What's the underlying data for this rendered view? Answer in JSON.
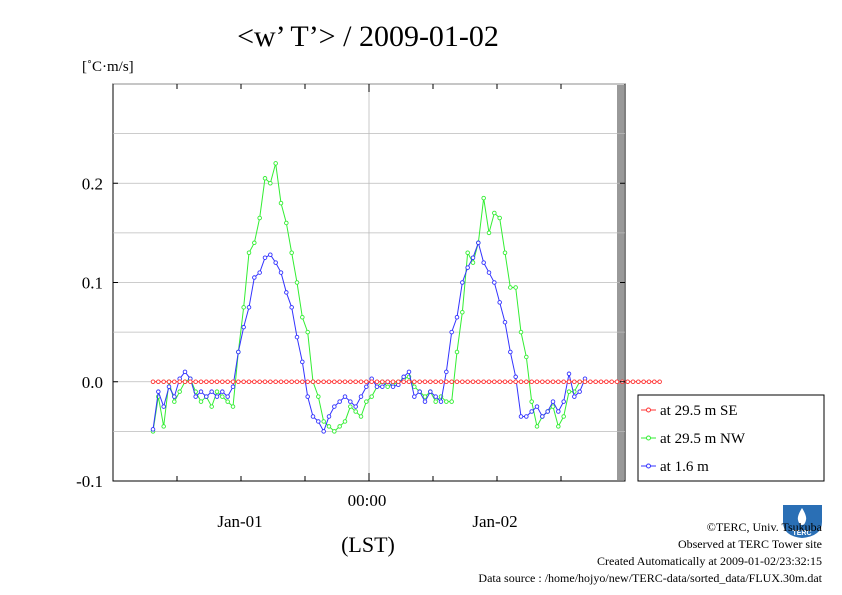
{
  "colors": {
    "se": "#ff3333",
    "nw": "#33ee33",
    "low": "#3333ff",
    "grid": "#bbbbbb",
    "axis": "#000000",
    "scrollbar": "#999999",
    "logo": "#2a6fb5"
  },
  "chart_data": {
    "type": "line",
    "title": "<w’ T’> / 2009-01-02",
    "unit": "[˚C·m/s]",
    "xlabel": "(LST)",
    "ylim": [
      -0.1,
      0.3
    ],
    "yticks": [
      -0.1,
      0.0,
      0.1,
      0.2
    ],
    "ytick_labels": [
      "-0.1",
      "0.0",
      "0.1",
      "0.2"
    ],
    "x_start": "2009-01-01 00:00",
    "x_end": "2009-01-03 00:00",
    "x_tick_labels": {
      "midnight": "00:00",
      "day1": "Jan-01",
      "day2": "Jan-02"
    },
    "time_step_hours": 0.5,
    "grid": true,
    "legend_position": "bottom-right",
    "series": [
      {
        "name": "at 29.5 m SE",
        "values": [
          0,
          0,
          0,
          0,
          0,
          0,
          0,
          0,
          0,
          0,
          0,
          0,
          0,
          0,
          0,
          0,
          0,
          0,
          0,
          0,
          0,
          0,
          0,
          0,
          0,
          0,
          0,
          0,
          0,
          0,
          0,
          0,
          0,
          0,
          0,
          0,
          0,
          0,
          0,
          0,
          0,
          0,
          0,
          0,
          0,
          0,
          0,
          0,
          0,
          0,
          0,
          0,
          0,
          0,
          0,
          0,
          0,
          0,
          0,
          0,
          0,
          0,
          0,
          0,
          0,
          0,
          0,
          0,
          0,
          0,
          0,
          0,
          0,
          0,
          0,
          0,
          0,
          0,
          0,
          0,
          0,
          0,
          0,
          0,
          0,
          0,
          0,
          0,
          0,
          0,
          0,
          0,
          0,
          0,
          0,
          0
        ]
      },
      {
        "name": "at 29.5 m NW",
        "values": [
          -0.05,
          -0.015,
          -0.045,
          0.0,
          -0.02,
          -0.01,
          0.0,
          0.003,
          -0.01,
          -0.02,
          -0.015,
          -0.025,
          -0.01,
          -0.015,
          -0.02,
          -0.025,
          0.03,
          0.075,
          0.13,
          0.14,
          0.165,
          0.205,
          0.2,
          0.22,
          0.18,
          0.16,
          0.13,
          0.1,
          0.065,
          0.05,
          0.0,
          -0.015,
          -0.04,
          -0.045,
          -0.05,
          -0.045,
          -0.04,
          -0.025,
          -0.03,
          -0.035,
          -0.02,
          -0.015,
          -0.005,
          0.0,
          -0.005,
          -0.003,
          0.0,
          0.003,
          0.005,
          -0.005,
          -0.01,
          -0.015,
          -0.01,
          -0.02,
          -0.015,
          -0.02,
          -0.02,
          0.03,
          0.07,
          0.13,
          0.12,
          0.14,
          0.185,
          0.15,
          0.17,
          0.165,
          0.13,
          0.095,
          0.095,
          0.05,
          0.025,
          -0.02,
          -0.045,
          -0.035,
          -0.03,
          -0.025,
          -0.045,
          -0.035,
          -0.01,
          -0.01,
          0.0,
          0.0
        ]
      },
      {
        "name": "at 1.6 m",
        "values": [
          -0.048,
          -0.01,
          -0.025,
          -0.005,
          -0.015,
          0.003,
          0.01,
          0.003,
          -0.015,
          -0.01,
          -0.015,
          -0.01,
          -0.015,
          -0.01,
          -0.015,
          -0.005,
          0.03,
          0.055,
          0.075,
          0.105,
          0.11,
          0.125,
          0.128,
          0.12,
          0.11,
          0.09,
          0.075,
          0.045,
          0.02,
          -0.015,
          -0.035,
          -0.04,
          -0.05,
          -0.035,
          -0.025,
          -0.02,
          -0.015,
          -0.02,
          -0.025,
          -0.015,
          -0.005,
          0.003,
          -0.005,
          -0.005,
          0.0,
          -0.005,
          -0.003,
          0.005,
          0.01,
          -0.015,
          -0.01,
          -0.02,
          -0.01,
          -0.015,
          -0.02,
          0.01,
          0.05,
          0.065,
          0.1,
          0.115,
          0.125,
          0.14,
          0.12,
          0.11,
          0.1,
          0.08,
          0.06,
          0.03,
          0.005,
          -0.035,
          -0.035,
          -0.03,
          -0.025,
          -0.035,
          -0.03,
          -0.02,
          -0.03,
          -0.02,
          0.008,
          -0.015,
          -0.01,
          0.003
        ]
      }
    ]
  },
  "footer": {
    "line1": "©TERC, Univ. Tsukuba",
    "line2": "Observed at TERC Tower site",
    "line3": "Created Automatically at 2009-01-02/23:32:15",
    "line4": "Data source : /home/hojyo/new/TERC-data/sorted_data/FLUX.30m.dat",
    "logo_text": "TERC"
  }
}
